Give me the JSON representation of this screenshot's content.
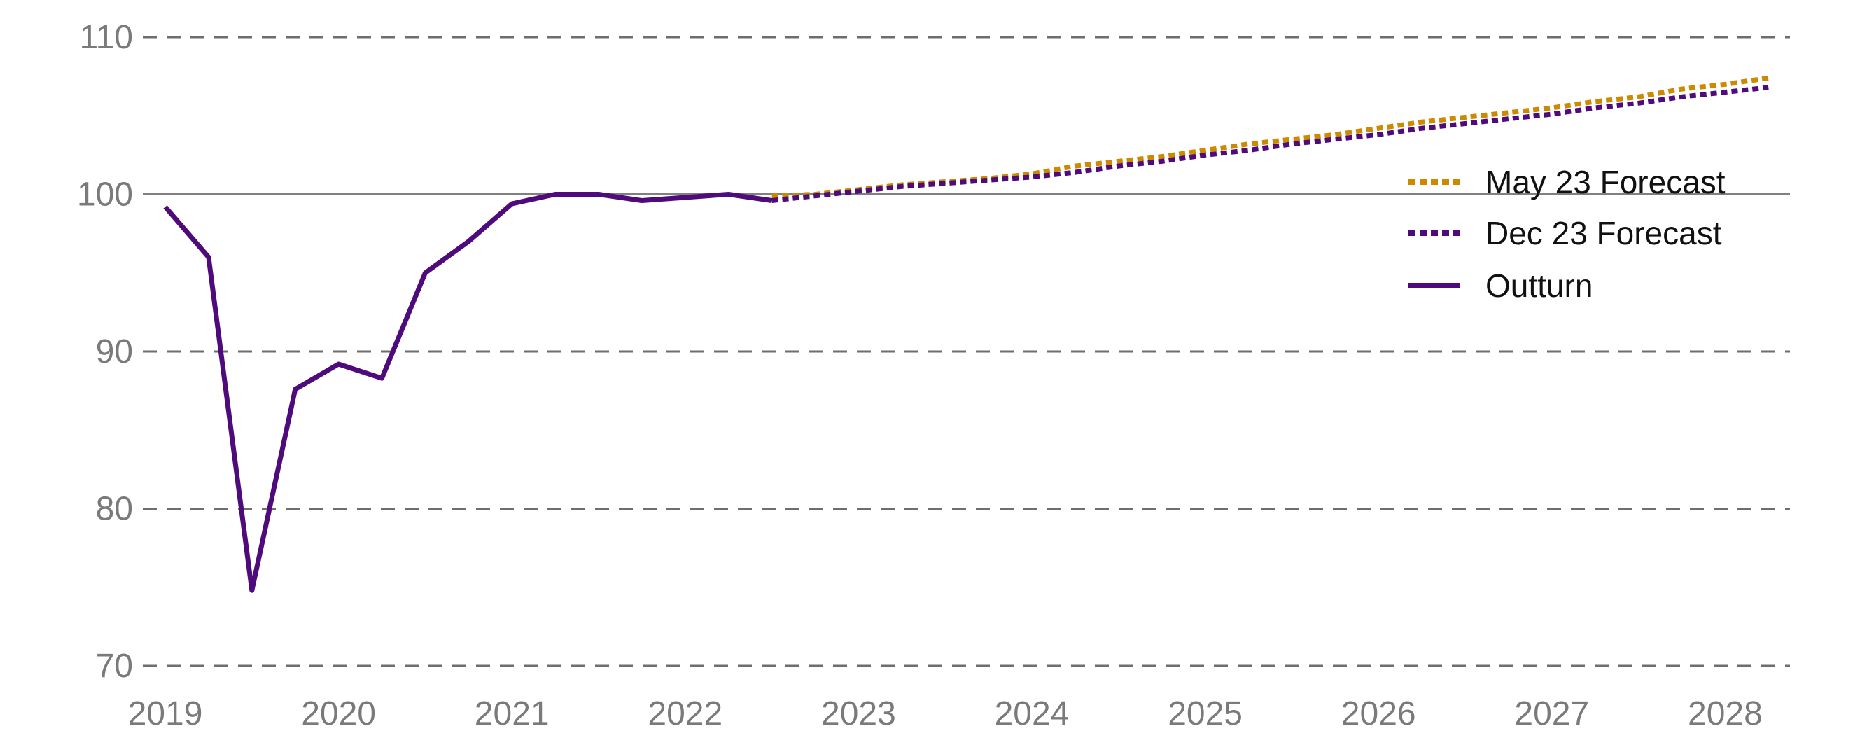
{
  "chart_data": {
    "type": "line",
    "title": "",
    "xlabel": "",
    "ylabel": "",
    "ylim": [
      70,
      110
    ],
    "y_ticks": [
      "70",
      "80",
      "90",
      "100",
      "110"
    ],
    "x_ticks": [
      "2019",
      "2020",
      "2021",
      "2022",
      "2023",
      "2024",
      "2025",
      "2026",
      "2027",
      "2028"
    ],
    "x_start": "2019 Q1",
    "x_frequency": "quarterly",
    "grid": "horizontal dashed",
    "reference_line": 100,
    "legend_position": "right",
    "series": [
      {
        "name": "May 23 Forecast",
        "color": "#cc8a00",
        "style": "dotted",
        "start_index": 14,
        "values": [
          99.9,
          100.0,
          100.3,
          100.6,
          100.8,
          101.0,
          101.3,
          101.8,
          102.1,
          102.4,
          102.8,
          103.2,
          103.5,
          103.8,
          104.2,
          104.6,
          104.9,
          105.2,
          105.5,
          105.9,
          106.2,
          106.7,
          107.0,
          107.4
        ]
      },
      {
        "name": "Dec 23 Forecast",
        "color": "#4f0b7b",
        "style": "dotted",
        "start_index": 14,
        "values": [
          99.6,
          99.9,
          100.2,
          100.5,
          100.7,
          100.9,
          101.1,
          101.4,
          101.8,
          102.1,
          102.5,
          102.8,
          103.2,
          103.5,
          103.8,
          104.2,
          104.5,
          104.8,
          105.1,
          105.5,
          105.8,
          106.2,
          106.5,
          106.8
        ]
      },
      {
        "name": "Outturn",
        "color": "#4f0b7b",
        "style": "solid",
        "start_index": 0,
        "values": [
          99.2,
          96.0,
          74.8,
          87.6,
          89.2,
          88.3,
          95.0,
          97.0,
          99.4,
          100.0,
          100.0,
          99.6,
          99.8,
          100.0,
          99.6
        ]
      }
    ]
  }
}
